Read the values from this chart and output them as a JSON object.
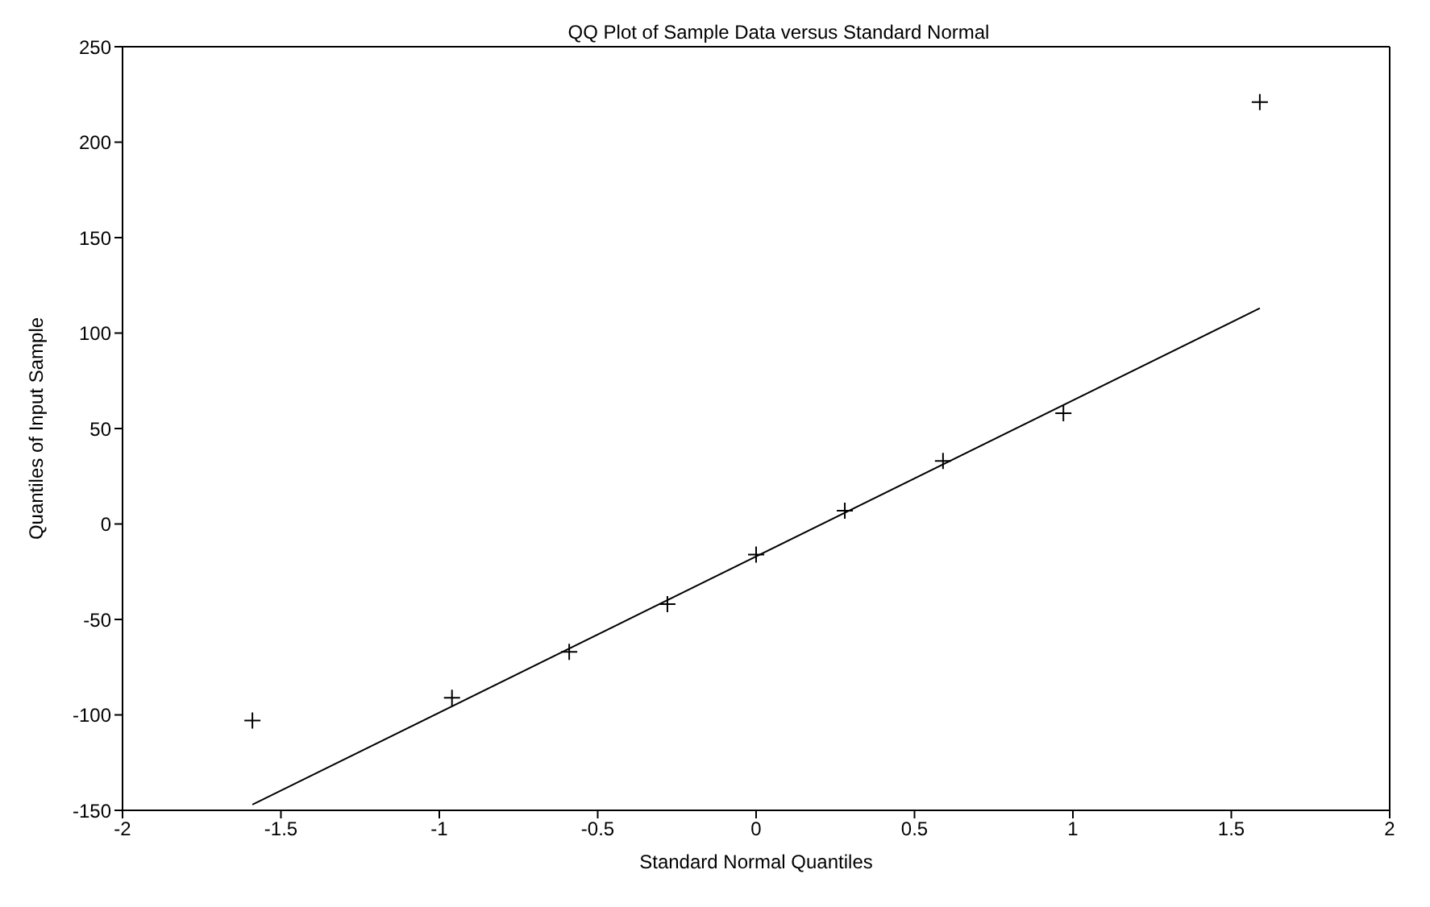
{
  "chart_data": {
    "type": "scatter",
    "title": "QQ Plot of Sample Data versus Standard Normal",
    "xlabel": "Standard Normal Quantiles",
    "ylabel": "Quantiles of Input Sample",
    "xlim": [
      -2,
      2
    ],
    "xticks": [
      -2,
      -1.5,
      -1,
      -0.5,
      0,
      0.5,
      1,
      1.5,
      2
    ],
    "ylim": [
      -150,
      250
    ],
    "yticks": [
      -150,
      -100,
      -50,
      0,
      50,
      100,
      150,
      200,
      250
    ],
    "series": [
      {
        "color": "#000000",
        "marker": "cross",
        "x": [
          -1.59,
          -0.96,
          -0.59,
          -0.28,
          0,
          0.28,
          0.59,
          0.97,
          1.59
        ],
        "values": [
          -103,
          -91,
          -67,
          -42,
          -16,
          7,
          33,
          58,
          221
        ]
      },
      {
        "type": "line",
        "color": "#000000",
        "marker": "none",
        "line_style": "solid",
        "x": [
          -1.59,
          1.59
        ],
        "values": [
          -147,
          113
        ]
      }
    ]
  }
}
